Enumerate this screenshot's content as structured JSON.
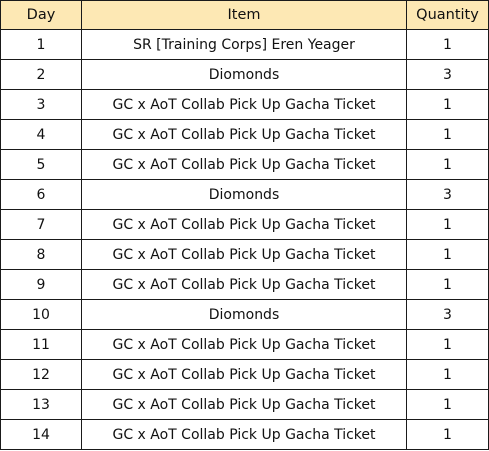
{
  "table": {
    "headers": [
      "Day",
      "Item",
      "Quantity"
    ],
    "rows": [
      {
        "day": "1",
        "item": "SR [Training Corps] Eren Yeager",
        "quantity": "1"
      },
      {
        "day": "2",
        "item": "Diomonds",
        "quantity": "3"
      },
      {
        "day": "3",
        "item": "GC x AoT Collab Pick Up Gacha Ticket",
        "quantity": "1"
      },
      {
        "day": "4",
        "item": "GC x AoT Collab Pick Up Gacha Ticket",
        "quantity": "1"
      },
      {
        "day": "5",
        "item": "GC x AoT Collab Pick Up Gacha Ticket",
        "quantity": "1"
      },
      {
        "day": "6",
        "item": "Diomonds",
        "quantity": "3"
      },
      {
        "day": "7",
        "item": "GC x AoT Collab Pick Up Gacha Ticket",
        "quantity": "1"
      },
      {
        "day": "8",
        "item": "GC x AoT Collab Pick Up Gacha Ticket",
        "quantity": "1"
      },
      {
        "day": "9",
        "item": "GC x AoT Collab Pick Up Gacha Ticket",
        "quantity": "1"
      },
      {
        "day": "10",
        "item": "Diomonds",
        "quantity": "3"
      },
      {
        "day": "11",
        "item": "GC x AoT Collab Pick Up Gacha Ticket",
        "quantity": "1"
      },
      {
        "day": "12",
        "item": "GC x AoT Collab Pick Up Gacha Ticket",
        "quantity": "1"
      },
      {
        "day": "13",
        "item": "GC x AoT Collab Pick Up Gacha Ticket",
        "quantity": "1"
      },
      {
        "day": "14",
        "item": "GC x AoT Collab Pick Up Gacha Ticket",
        "quantity": "1"
      }
    ]
  },
  "colors": {
    "header_background": "#fde8b4",
    "border": "#1a1a1a",
    "text": "#111111"
  }
}
